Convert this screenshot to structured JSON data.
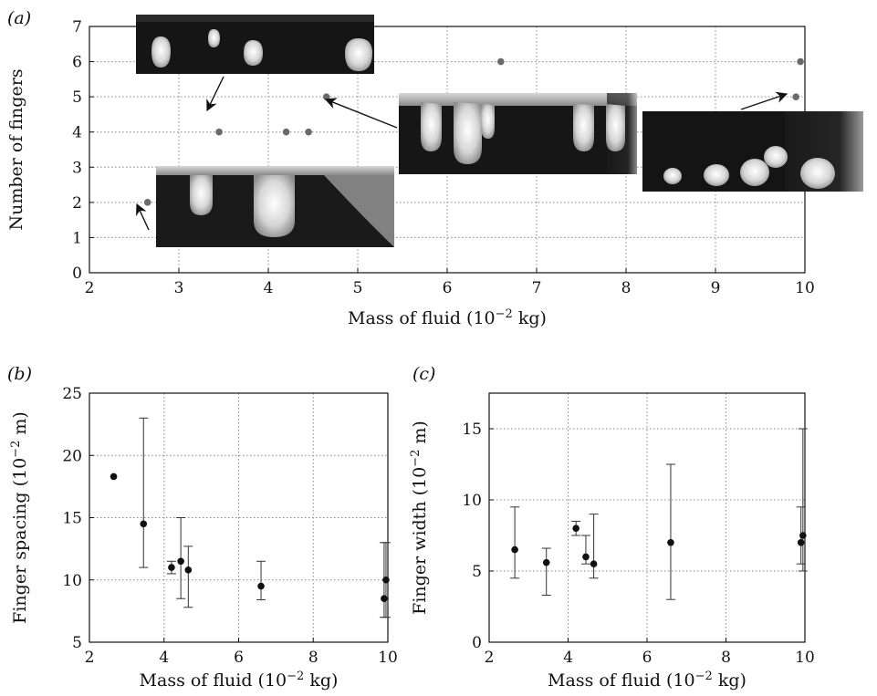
{
  "panels": {
    "a": {
      "label": "(a)"
    },
    "b": {
      "label": "(b)"
    },
    "c": {
      "label": "(c)"
    }
  },
  "chart_data": [
    {
      "id": "a",
      "type": "scatter",
      "xlabel": "Mass of fluid (10",
      "xlabel_exp": "−2",
      "xlabel_unit": " kg)",
      "ylabel": "Number of fingers",
      "xlim": [
        2,
        10
      ],
      "ylim": [
        0,
        7
      ],
      "xticks": [
        2,
        3,
        4,
        5,
        6,
        7,
        8,
        9,
        10
      ],
      "yticks": [
        0,
        1,
        2,
        3,
        4,
        5,
        6,
        7
      ],
      "grid": true,
      "x": [
        2.65,
        3.45,
        4.2,
        4.45,
        4.65,
        6.6,
        9.9,
        9.95
      ],
      "y": [
        2,
        4,
        4,
        4,
        5,
        6,
        5,
        6
      ],
      "insets": [
        "photo-6-fingers",
        "photo-5-fingers",
        "photo-2-fingers",
        "photo-5-fingers-large"
      ],
      "colors": {
        "point": "#6a6a6a",
        "grid": "#8a8a8a",
        "axis": "#111111"
      }
    },
    {
      "id": "b",
      "type": "scatter",
      "xlabel": "Mass of fluid (10",
      "xlabel_exp": "−2",
      "xlabel_unit": " kg)",
      "ylabel": "Finger spacing (10",
      "ylabel_exp": "−2",
      "ylabel_unit": " m)",
      "xlim": [
        2,
        10
      ],
      "ylim": [
        5,
        25
      ],
      "xticks": [
        2,
        4,
        6,
        8,
        10
      ],
      "yticks": [
        5,
        10,
        15,
        20,
        25
      ],
      "grid": true,
      "x": [
        2.65,
        3.45,
        4.2,
        4.45,
        4.65,
        6.6,
        9.9,
        9.95
      ],
      "y": [
        18.3,
        14.5,
        11.0,
        11.5,
        10.8,
        9.5,
        8.5,
        10.0
      ],
      "yerr_low": [
        null,
        11.0,
        10.5,
        8.5,
        7.8,
        8.4,
        7.0,
        7.0
      ],
      "yerr_high": [
        null,
        23.0,
        11.5,
        15.0,
        12.7,
        11.5,
        13.0,
        13.0
      ],
      "colors": {
        "point": "#111111",
        "grid": "#8a8a8a",
        "axis": "#111111"
      }
    },
    {
      "id": "c",
      "type": "scatter",
      "xlabel": "Mass of fluid (10",
      "xlabel_exp": "−2",
      "xlabel_unit": " kg)",
      "ylabel": "Finger width (10",
      "ylabel_exp": "−2",
      "ylabel_unit": " m)",
      "xlim": [
        2,
        10
      ],
      "ylim": [
        0,
        17.5
      ],
      "xticks": [
        2,
        4,
        6,
        8,
        10
      ],
      "yticks": [
        0,
        5,
        10,
        15
      ],
      "grid": true,
      "x": [
        2.65,
        3.45,
        4.2,
        4.45,
        4.65,
        6.6,
        9.9,
        9.95
      ],
      "y": [
        6.5,
        5.6,
        8.0,
        6.0,
        5.5,
        7.0,
        7.0,
        7.5
      ],
      "yerr_low": [
        4.5,
        3.3,
        7.5,
        5.5,
        4.5,
        3.0,
        5.5,
        5.0
      ],
      "yerr_high": [
        9.5,
        6.6,
        8.5,
        7.5,
        9.0,
        12.5,
        9.5,
        15.0
      ],
      "colors": {
        "point": "#111111",
        "grid": "#8a8a8a",
        "axis": "#111111"
      }
    }
  ]
}
